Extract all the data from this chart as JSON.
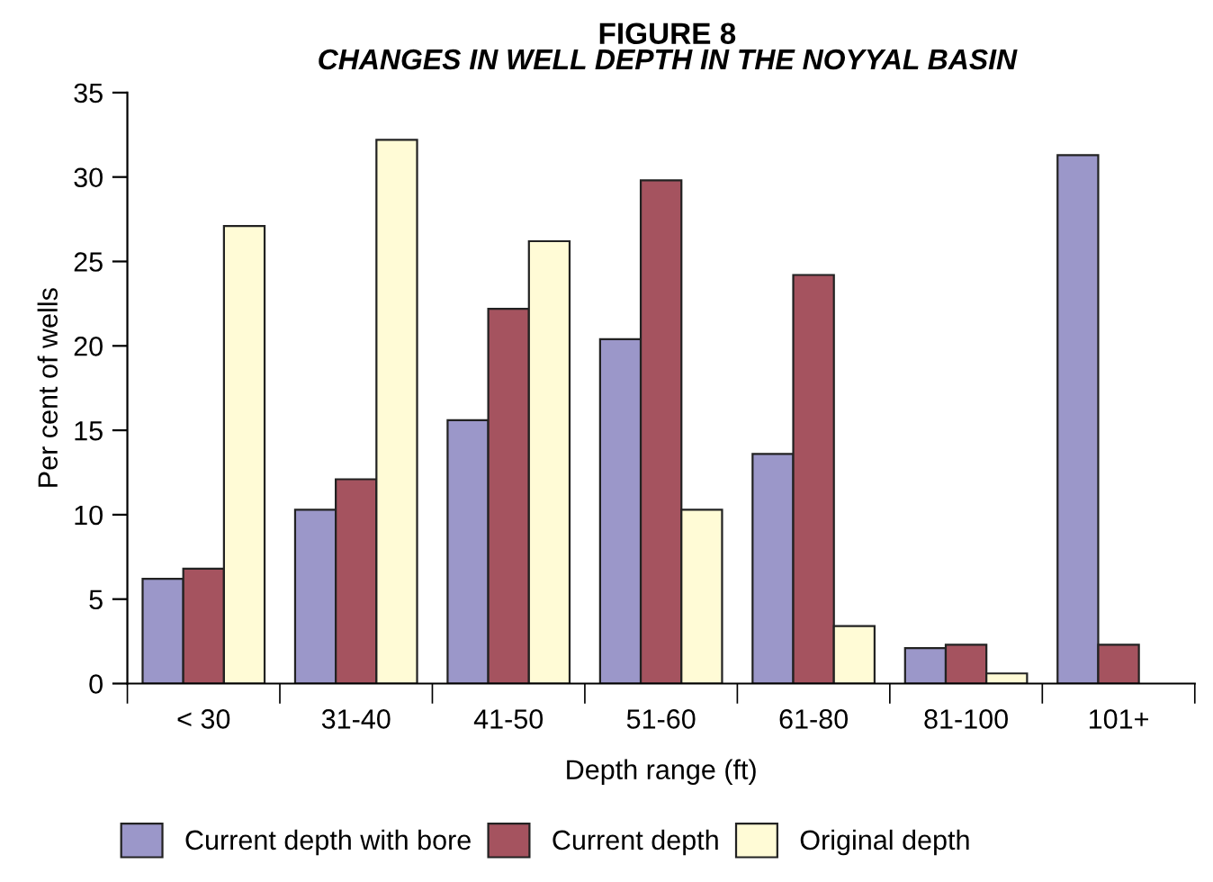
{
  "chart_data": {
    "type": "bar",
    "title": "FIGURE 8",
    "subtitle": "CHANGES IN WELL DEPTH IN THE NOYYAL BASIN",
    "xlabel": "Depth range (ft)",
    "ylabel": "Per cent of wells",
    "categories": [
      "< 30",
      "31-40",
      "41-50",
      "51-60",
      "61-80",
      "81-100",
      "101+"
    ],
    "series": [
      {
        "name": "Current depth with bore",
        "color": "#9b97c9",
        "values": [
          6.2,
          10.3,
          15.6,
          20.4,
          13.6,
          2.1,
          31.3
        ]
      },
      {
        "name": "Current depth",
        "color": "#a5535f",
        "values": [
          6.8,
          12.1,
          22.2,
          29.8,
          24.2,
          2.3,
          2.3
        ]
      },
      {
        "name": "Original depth",
        "color": "#fffbd6",
        "values": [
          27.1,
          32.2,
          26.2,
          10.3,
          3.4,
          0.6,
          null
        ]
      }
    ],
    "ylim": [
      0,
      35
    ],
    "yticks": [
      0,
      5,
      10,
      15,
      20,
      25,
      30,
      35
    ],
    "grid": false,
    "legend": "bottom"
  }
}
